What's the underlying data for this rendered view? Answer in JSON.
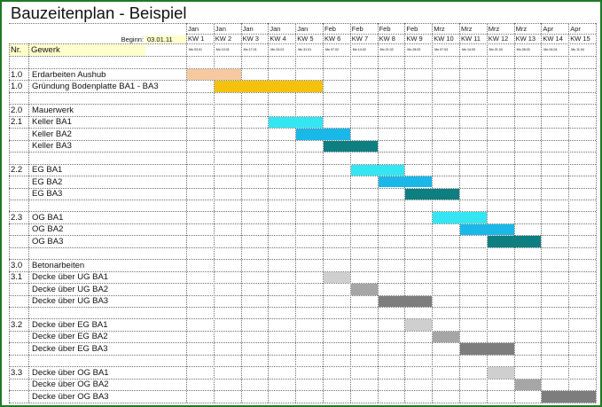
{
  "title": "Bauzeitenplan - Beispiel",
  "begin_label": "Beginn:",
  "begin_date": "03.01.11",
  "col_headers": {
    "nr": "Nr.",
    "gewerk": "Gewerk"
  },
  "weeks": [
    {
      "month": "Jan",
      "kw": "KW 1",
      "date": "Mo 03.01"
    },
    {
      "month": "Jan",
      "kw": "KW 2",
      "date": "Mo 10.01"
    },
    {
      "month": "Jan",
      "kw": "KW 3",
      "date": "Mo 17.01"
    },
    {
      "month": "Jan",
      "kw": "KW 4",
      "date": "Mo 24.01"
    },
    {
      "month": "Jan",
      "kw": "KW 5",
      "date": "Mo 31.01"
    },
    {
      "month": "Feb",
      "kw": "KW 6",
      "date": "Mo 07.02"
    },
    {
      "month": "Feb",
      "kw": "KW 7",
      "date": "Mo 14.02"
    },
    {
      "month": "Feb",
      "kw": "KW 8",
      "date": "Mo 21.02"
    },
    {
      "month": "Feb",
      "kw": "KW 9",
      "date": "Mo 28.02"
    },
    {
      "month": "Mrz",
      "kw": "KW 10",
      "date": "Mo 07.03"
    },
    {
      "month": "Mrz",
      "kw": "KW 11",
      "date": "Mo 14.03"
    },
    {
      "month": "Mrz",
      "kw": "KW 12",
      "date": "Mo 21.03"
    },
    {
      "month": "Mrz",
      "kw": "KW 13",
      "date": "Mo 28.03"
    },
    {
      "month": "Apr",
      "kw": "KW 14",
      "date": "Mo 04.04"
    },
    {
      "month": "Apr",
      "kw": "KW 15",
      "date": "Mo 11.04"
    }
  ],
  "rows": [
    {
      "nr": "1.0",
      "task": "Erdarbeiten Aushub",
      "start": 0,
      "len": 2,
      "color": "#f7c9a0"
    },
    {
      "nr": "1.0",
      "task": "Gründung Bodenplatte BA1 - BA3",
      "start": 1,
      "len": 4,
      "color": "#f4c20d"
    },
    {
      "nr": "",
      "task": "",
      "start": null
    },
    {
      "nr": "2.0",
      "task": "Mauerwerk",
      "start": null
    },
    {
      "nr": "2.1",
      "task": "Keller BA1",
      "start": 3,
      "len": 2,
      "color": "#33e6f2"
    },
    {
      "nr": "",
      "task": "Keller BA2",
      "start": 4,
      "len": 2,
      "color": "#1ab8e8"
    },
    {
      "nr": "",
      "task": "Keller BA3",
      "start": 5,
      "len": 2,
      "color": "#0e7f80"
    },
    {
      "nr": "",
      "task": "",
      "start": null
    },
    {
      "nr": "2.2",
      "task": "EG BA1",
      "start": 6,
      "len": 2,
      "color": "#33e6f2"
    },
    {
      "nr": "",
      "task": "EG BA2",
      "start": 7,
      "len": 2,
      "color": "#1ab8e8"
    },
    {
      "nr": "",
      "task": "EG BA3",
      "start": 8,
      "len": 2,
      "color": "#0e7f80"
    },
    {
      "nr": "",
      "task": "",
      "start": null
    },
    {
      "nr": "2.3",
      "task": "OG BA1",
      "start": 9,
      "len": 2,
      "color": "#33e6f2"
    },
    {
      "nr": "",
      "task": "OG BA2",
      "start": 10,
      "len": 2,
      "color": "#1ab8e8"
    },
    {
      "nr": "",
      "task": "OG BA3",
      "start": 11,
      "len": 2,
      "color": "#0e7f80"
    },
    {
      "nr": "",
      "task": "",
      "start": null
    },
    {
      "nr": "3.0",
      "task": "Betonarbeiten",
      "start": null
    },
    {
      "nr": "3.1",
      "task": "Decke über UG BA1",
      "start": 5,
      "len": 1,
      "color": "#cfcfcf"
    },
    {
      "nr": "",
      "task": "Decke über UG BA2",
      "start": 6,
      "len": 1,
      "color": "#a6a6a6"
    },
    {
      "nr": "",
      "task": "Decke über UG BA3",
      "start": 7,
      "len": 2,
      "color": "#7d7d7d"
    },
    {
      "nr": "",
      "task": "",
      "start": null
    },
    {
      "nr": "3.2",
      "task": "Decke über EG BA1",
      "start": 8,
      "len": 1,
      "color": "#cfcfcf"
    },
    {
      "nr": "",
      "task": "Decke über EG BA2",
      "start": 9,
      "len": 1,
      "color": "#a6a6a6"
    },
    {
      "nr": "",
      "task": "Decke über EG BA3",
      "start": 10,
      "len": 2,
      "color": "#7d7d7d"
    },
    {
      "nr": "",
      "task": "",
      "start": null
    },
    {
      "nr": "3.3",
      "task": "Decke über OG BA1",
      "start": 11,
      "len": 1,
      "color": "#cfcfcf"
    },
    {
      "nr": "",
      "task": "Decke über OG BA2",
      "start": 12,
      "len": 1,
      "color": "#a6a6a6"
    },
    {
      "nr": "",
      "task": "Decke über OG BA3",
      "start": 13,
      "len": 2,
      "color": "#7d7d7d"
    }
  ],
  "colors": {
    "frame": "#1e7a24",
    "input_bg": "#ffffcc"
  }
}
